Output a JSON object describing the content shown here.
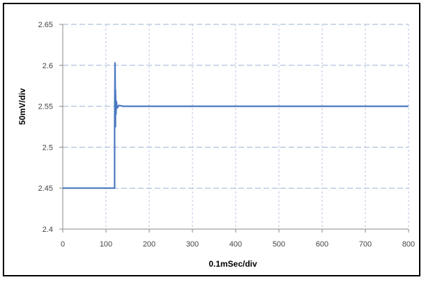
{
  "chart_data": {
    "type": "line",
    "title": "",
    "xlabel": "0.1mSec/div",
    "ylabel": "50mV/div",
    "xlim": [
      0,
      800
    ],
    "ylim": [
      2.4,
      2.65
    ],
    "x_ticks": [
      "0",
      "100",
      "200",
      "300",
      "400",
      "500",
      "600",
      "700",
      "800"
    ],
    "y_ticks": [
      "2.4",
      "2.45",
      "2.5",
      "2.55",
      "2.6",
      "2.65"
    ],
    "grid": true,
    "legend": "none",
    "series": [
      {
        "color": "#4a78c0",
        "x": [
          0,
          120,
          120,
          121,
          122,
          122,
          123,
          124,
          126,
          130,
          140,
          800
        ],
        "y": [
          2.45,
          2.45,
          2.52,
          2.603,
          2.525,
          2.57,
          2.54,
          2.556,
          2.548,
          2.551,
          2.55,
          2.55
        ]
      }
    ]
  }
}
